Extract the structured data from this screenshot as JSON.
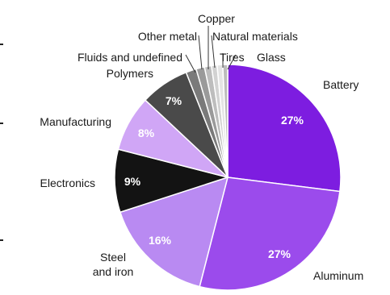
{
  "chart_data": {
    "type": "pie",
    "slices": [
      {
        "label": "Battery",
        "value": 27,
        "value_label": "27%",
        "color": "#7d1de0"
      },
      {
        "label": "Aluminum",
        "value": 27,
        "value_label": "27%",
        "color": "#9b4bec"
      },
      {
        "label": "Steel\nand iron",
        "value": 16,
        "value_label": "16%",
        "color": "#b98af2"
      },
      {
        "label": "Electronics",
        "value": 9,
        "value_label": "9%",
        "color": "#131313"
      },
      {
        "label": "Manufacturing",
        "value": 8,
        "value_label": "8%",
        "color": "#d0a6f6"
      },
      {
        "label": "Polymers",
        "value": 7,
        "value_label": "7%",
        "color": "#4a4a4a"
      },
      {
        "label": "Fluids and undefined",
        "value": 1.5,
        "value_label": "",
        "color": "#7a7a7a"
      },
      {
        "label": "Other metal",
        "value": 1.2,
        "value_label": "",
        "color": "#9a9a9a"
      },
      {
        "label": "Copper",
        "value": 1.0,
        "value_label": "",
        "color": "#bdbdbd"
      },
      {
        "label": "Natural materials",
        "value": 0.8,
        "value_label": "",
        "color": "#d2d2d2"
      },
      {
        "label": "Tires",
        "value": 0.8,
        "value_label": "",
        "color": "#e4e4e4"
      },
      {
        "label": "Glass",
        "value": 0.7,
        "value_label": "",
        "color": "#bcbcbc"
      }
    ],
    "legend": "none (slice labels around the pie)",
    "value_label_color": "#ffffff",
    "category_label_color": "#1a1a1a"
  }
}
